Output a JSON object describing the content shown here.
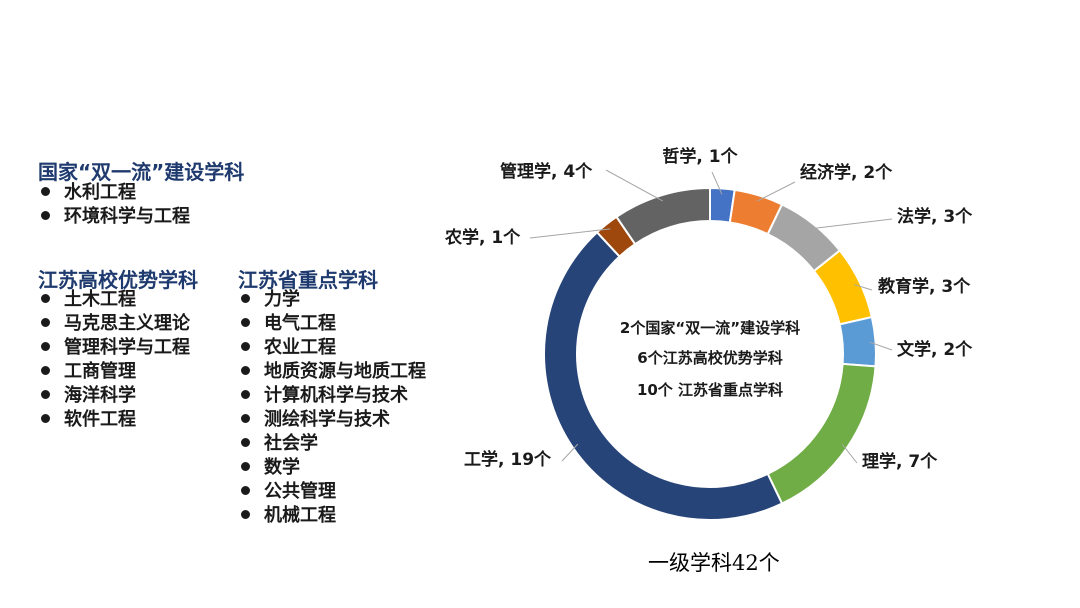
{
  "left_panel": {
    "double_first_class": {
      "title": "国家“双一流”建设学科",
      "items": [
        "水利工程",
        "环境科学与工程"
      ]
    },
    "jiangsu_advantage": {
      "title": "江苏高校优势学科",
      "items": [
        "土木工程",
        "马克思主义理论",
        "管理科学与工程",
        "工商管理",
        "海洋科学",
        "软件工程"
      ]
    },
    "jiangsu_key": {
      "title": "江苏省重点学科",
      "items": [
        "力学",
        "电气工程",
        "农业工程",
        "地质资源与地质工程",
        "计算机科学与技术",
        "测绘科学与技术",
        "社会学",
        "数学",
        "公共管理",
        "机械工程"
      ]
    }
  },
  "chart_data": {
    "type": "pie",
    "donut": true,
    "slices": [
      {
        "label": "哲学, 1个",
        "category": "哲学",
        "value": 1,
        "color": "#4472c4"
      },
      {
        "label": "经济学, 2个",
        "category": "经济学",
        "value": 2,
        "color": "#ed7d31"
      },
      {
        "label": "法学, 3个",
        "category": "法学",
        "value": 3,
        "color": "#a5a5a5"
      },
      {
        "label": "教育学, 3个",
        "category": "教育学",
        "value": 3,
        "color": "#ffc000"
      },
      {
        "label": "文学, 2个",
        "category": "文学",
        "value": 2,
        "color": "#5b9bd5"
      },
      {
        "label": "理学, 7个",
        "category": "理学",
        "value": 7,
        "color": "#70ad47"
      },
      {
        "label": "工学, 19个",
        "category": "工学",
        "value": 19,
        "color": "#264478"
      },
      {
        "label": "农学, 1个",
        "category": "农学",
        "value": 1,
        "color": "#9e480e"
      },
      {
        "label": "管理学, 4个",
        "category": "管理学",
        "value": 4,
        "color": "#636363"
      }
    ],
    "center_text": [
      "2个国家“双一流”建设学科",
      "6个江苏高校优势学科",
      "10个 江苏省重点学科"
    ],
    "caption": "一级学科42个"
  }
}
